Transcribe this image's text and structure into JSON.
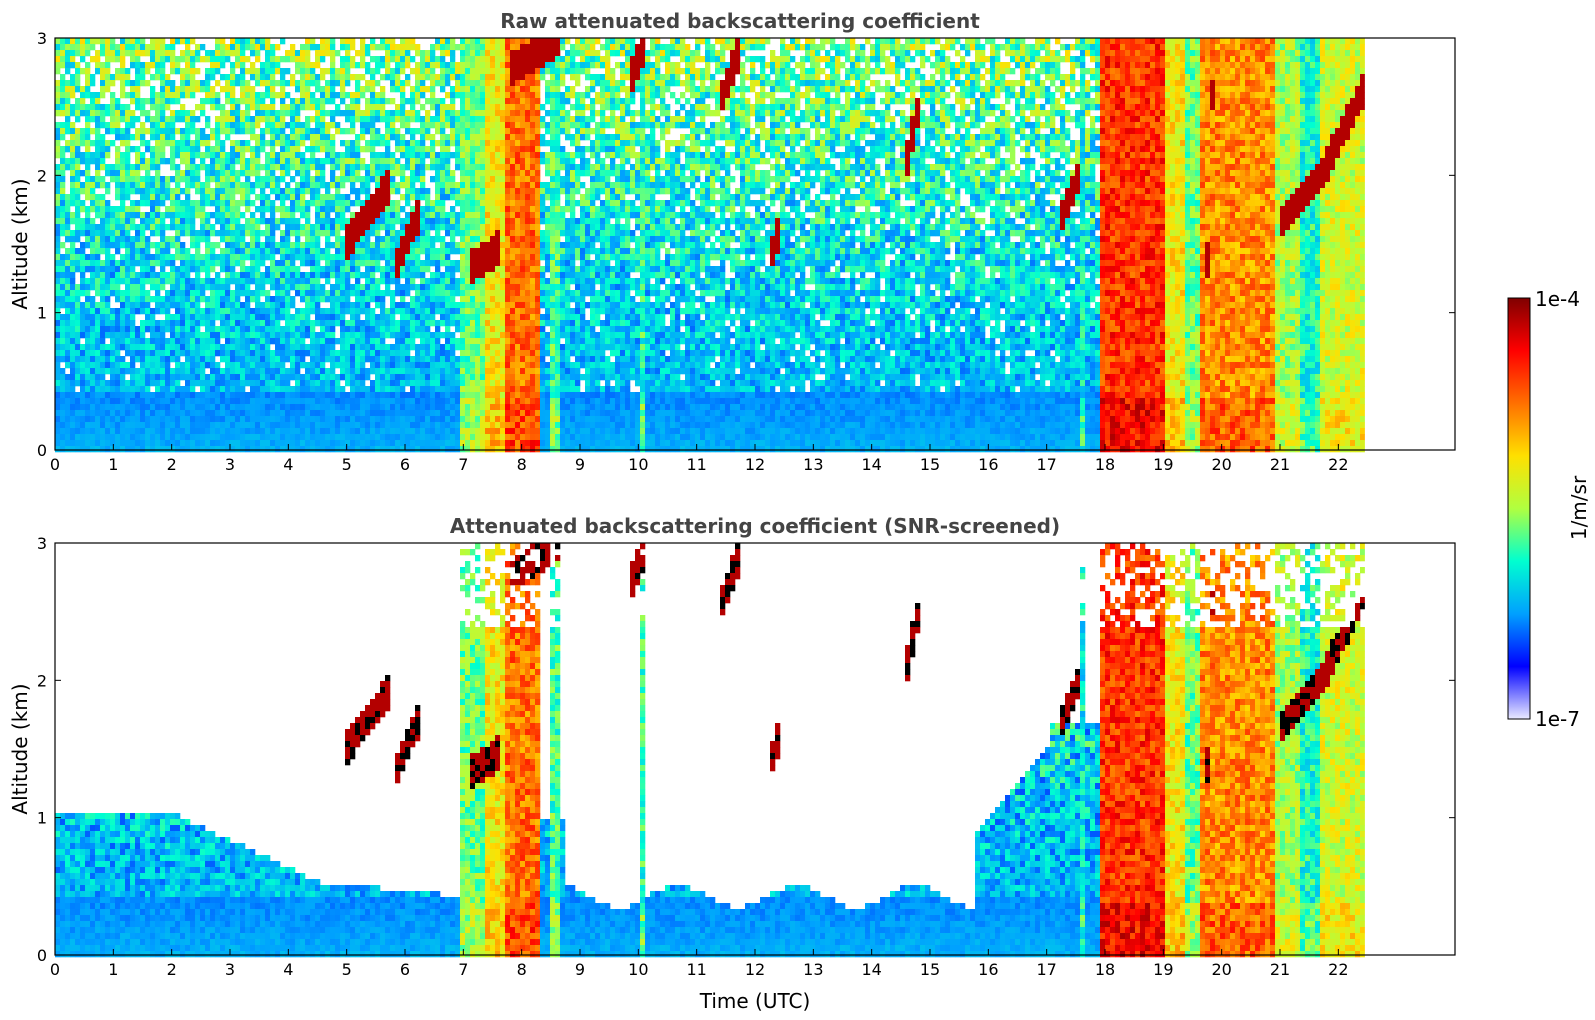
{
  "chart_data": [
    {
      "type": "heatmap",
      "title": "Raw attenuated backscattering coefficient",
      "xlabel": "",
      "ylabel": "Altitude (km)",
      "xlim": [
        0,
        24
      ],
      "ylim": [
        0,
        3
      ],
      "xticks": [
        "0",
        "1",
        "2",
        "3",
        "4",
        "5",
        "6",
        "7",
        "8",
        "9",
        "10",
        "11",
        "12",
        "13",
        "14",
        "15",
        "16",
        "17",
        "18",
        "19",
        "20",
        "21",
        "22"
      ],
      "yticks": [
        "0",
        "1",
        "2",
        "3"
      ],
      "data_end_hour": 22.45,
      "screened": false
    },
    {
      "type": "heatmap",
      "title": "Attenuated backscattering coefficient (SNR-screened)",
      "xlabel": "Time (UTC)",
      "ylabel": "Altitude (km)",
      "xlim": [
        0,
        24
      ],
      "ylim": [
        0,
        3
      ],
      "xticks": [
        "0",
        "1",
        "2",
        "3",
        "4",
        "5",
        "6",
        "7",
        "8",
        "9",
        "10",
        "11",
        "12",
        "13",
        "14",
        "15",
        "16",
        "17",
        "18",
        "19",
        "20",
        "21",
        "22"
      ],
      "yticks": [
        "0",
        "1",
        "2",
        "3"
      ],
      "data_end_hour": 22.45,
      "screened": true
    }
  ],
  "colorbar": {
    "label": "1/m/sr",
    "max_label": "1e-4",
    "min_label": "1e-7",
    "colormap": "jet",
    "colors": [
      "#eaeaff",
      "#0000ff",
      "#00a0ff",
      "#00ffd0",
      "#b0ff40",
      "#ffe000",
      "#ff7000",
      "#ff0000",
      "#800000"
    ]
  }
}
